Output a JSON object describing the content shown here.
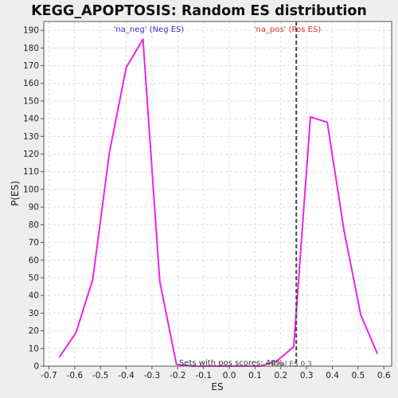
{
  "chart_data": {
    "type": "line",
    "title": "KEGG_APOPTOSIS: Random ES distribution",
    "xlabel": "ES",
    "ylabel": "P(ES)",
    "xlim": [
      -0.72,
      0.63
    ],
    "ylim": [
      0,
      195
    ],
    "xticks": [
      "-0.7",
      "-0.6",
      "-0.5",
      "-0.4",
      "-0.3",
      "-0.2",
      "-0.1",
      "0.0",
      "0.1",
      "0.2",
      "0.3",
      "0.4",
      "0.5",
      "0.6"
    ],
    "yticks": [
      "0",
      "10",
      "20",
      "30",
      "40",
      "50",
      "60",
      "70",
      "80",
      "90",
      "100",
      "110",
      "120",
      "130",
      "140",
      "150",
      "160",
      "170",
      "180",
      "190"
    ],
    "grid": true,
    "series": [
      {
        "color": "#ee22ee",
        "x": [
          -0.66,
          -0.595,
          -0.53,
          -0.465,
          -0.4,
          -0.335,
          -0.27,
          -0.205,
          -0.14,
          -0.075,
          -0.01,
          0.055,
          0.12,
          0.185,
          0.25,
          0.315,
          0.38,
          0.445,
          0.51,
          0.575
        ],
        "y": [
          5,
          19,
          49,
          121,
          169,
          185,
          48,
          1,
          0,
          0,
          0,
          0,
          0,
          3,
          11,
          141,
          138,
          77,
          29,
          7
        ]
      }
    ],
    "real_es": 0.26,
    "annotations": {
      "neg_label": "'na_neg' (Neg ES)",
      "pos_label": "'na_pos' (Pos ES)",
      "pos_scores": "Sets with pos scores: 40%",
      "real_es_label": "Real ES 0.3"
    },
    "colors": {
      "line": "#ee22ee",
      "neg_label": "#3333cc",
      "pos_label": "#dd3333",
      "real_es_line": "#444444"
    }
  }
}
